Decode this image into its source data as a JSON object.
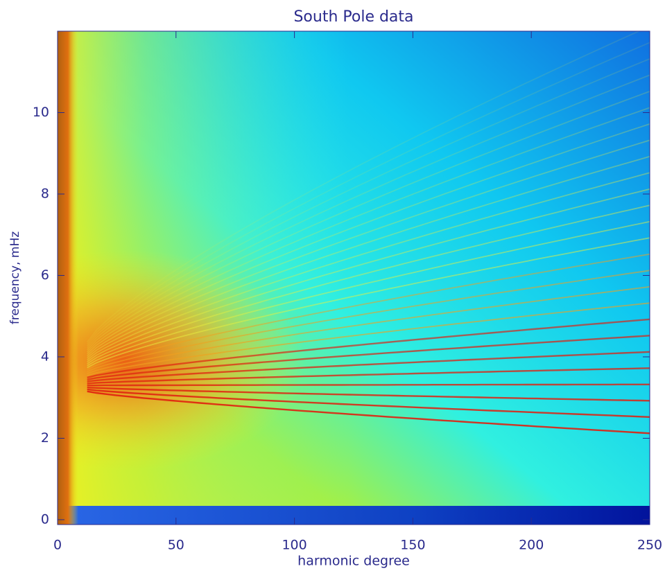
{
  "chart_data": {
    "type": "heatmap",
    "title": "South Pole data",
    "x_label": "harmonic degree",
    "y_label": "frequency, mHz",
    "xlim": [
      0,
      250
    ],
    "ylim": [
      -0.12,
      12
    ],
    "xticks": [
      0,
      50,
      100,
      150,
      200,
      250
    ],
    "yticks": [
      0,
      2,
      4,
      6,
      8,
      10
    ]
  }
}
